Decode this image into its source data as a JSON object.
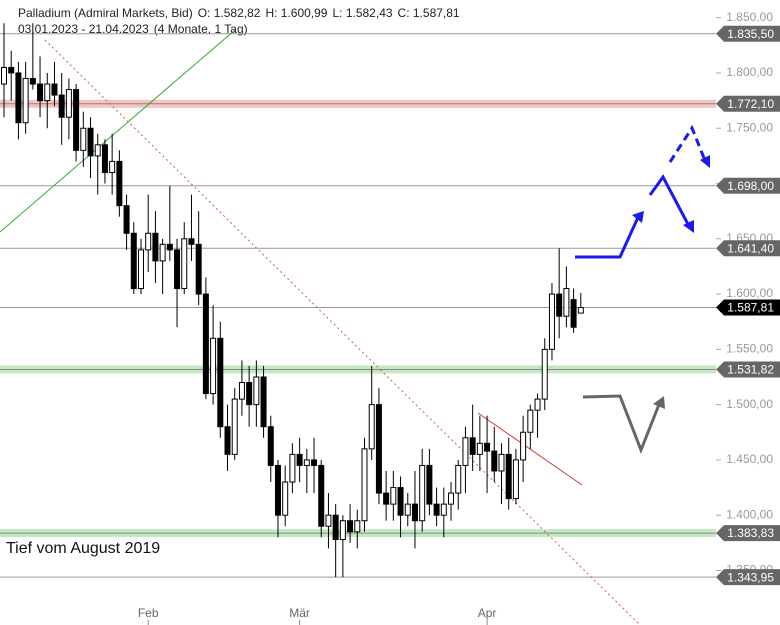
{
  "chart_data": {
    "type": "candlestick",
    "title": "Palladium (Admiral Markets, Bid)",
    "ohlc_labels": [
      "O: 1.582,82",
      "H: 1.600,99",
      "L: 1.582,43",
      "C: 1.587,81"
    ],
    "subtitle": "03.01.2023 - 21.04.2023",
    "period": "(4 Monate, 1 Tag)",
    "annotation": "Tief vom August 2019",
    "categories": [
      null,
      null,
      null,
      null,
      null,
      null,
      null,
      null,
      null,
      null,
      null,
      null,
      null,
      null,
      null,
      null,
      null,
      null,
      null,
      null,
      "Feb",
      null,
      null,
      null,
      null,
      null,
      null,
      null,
      null,
      null,
      null,
      null,
      null,
      null,
      null,
      null,
      null,
      null,
      null,
      null,
      null,
      "Mär",
      null,
      null,
      null,
      null,
      null,
      null,
      null,
      null,
      null,
      null,
      null,
      null,
      null,
      null,
      null,
      null,
      null,
      null,
      null,
      null,
      null,
      null,
      null,
      null,
      null,
      "Apr",
      null,
      null,
      null,
      null,
      null,
      null,
      null,
      null,
      null,
      null,
      null,
      null,
      null
    ],
    "ohlc": [
      [
        1790,
        1845,
        1760,
        1805
      ],
      [
        1805,
        1820,
        1775,
        1800
      ],
      [
        1800,
        1810,
        1740,
        1755
      ],
      [
        1755,
        1810,
        1745,
        1795
      ],
      [
        1795,
        1845,
        1785,
        1790
      ],
      [
        1790,
        1815,
        1760,
        1775
      ],
      [
        1775,
        1800,
        1750,
        1790
      ],
      [
        1790,
        1810,
        1770,
        1780
      ],
      [
        1780,
        1800,
        1735,
        1760
      ],
      [
        1760,
        1795,
        1740,
        1785
      ],
      [
        1785,
        1790,
        1720,
        1730
      ],
      [
        1730,
        1765,
        1715,
        1750
      ],
      [
        1750,
        1760,
        1705,
        1725
      ],
      [
        1725,
        1745,
        1690,
        1735
      ],
      [
        1735,
        1740,
        1700,
        1710
      ],
      [
        1710,
        1745,
        1690,
        1720
      ],
      [
        1720,
        1730,
        1670,
        1680
      ],
      [
        1680,
        1690,
        1640,
        1655
      ],
      [
        1655,
        1665,
        1600,
        1605
      ],
      [
        1605,
        1650,
        1600,
        1640
      ],
      [
        1640,
        1690,
        1620,
        1655
      ],
      [
        1655,
        1675,
        1610,
        1630
      ],
      [
        1630,
        1650,
        1600,
        1645
      ],
      [
        1645,
        1698,
        1630,
        1640
      ],
      [
        1640,
        1650,
        1570,
        1605
      ],
      [
        1605,
        1665,
        1600,
        1650
      ],
      [
        1650,
        1690,
        1630,
        1645
      ],
      [
        1645,
        1675,
        1590,
        1600
      ],
      [
        1600,
        1615,
        1505,
        1510
      ],
      [
        1510,
        1590,
        1500,
        1560
      ],
      [
        1560,
        1575,
        1470,
        1480
      ],
      [
        1480,
        1500,
        1440,
        1455
      ],
      [
        1455,
        1515,
        1450,
        1505
      ],
      [
        1505,
        1540,
        1490,
        1520
      ],
      [
        1520,
        1535,
        1480,
        1500
      ],
      [
        1500,
        1540,
        1480,
        1525
      ],
      [
        1525,
        1535,
        1470,
        1480
      ],
      [
        1480,
        1490,
        1430,
        1445
      ],
      [
        1445,
        1450,
        1380,
        1400
      ],
      [
        1400,
        1445,
        1390,
        1430
      ],
      [
        1430,
        1465,
        1420,
        1455
      ],
      [
        1455,
        1470,
        1430,
        1445
      ],
      [
        1445,
        1460,
        1420,
        1450
      ],
      [
        1450,
        1470,
        1420,
        1445
      ],
      [
        1445,
        1450,
        1380,
        1390
      ],
      [
        1390,
        1420,
        1370,
        1400
      ],
      [
        1400,
        1410,
        1344,
        1378
      ],
      [
        1378,
        1400,
        1343.95,
        1395
      ],
      [
        1395,
        1410,
        1375,
        1385
      ],
      [
        1385,
        1405,
        1370,
        1395
      ],
      [
        1395,
        1470,
        1385,
        1460
      ],
      [
        1460,
        1535,
        1450,
        1500
      ],
      [
        1500,
        1515,
        1410,
        1420
      ],
      [
        1420,
        1440,
        1395,
        1410
      ],
      [
        1410,
        1440,
        1395,
        1425
      ],
      [
        1425,
        1435,
        1380,
        1400
      ],
      [
        1400,
        1420,
        1390,
        1410
      ],
      [
        1410,
        1440,
        1370,
        1395
      ],
      [
        1395,
        1460,
        1385,
        1445
      ],
      [
        1445,
        1460,
        1400,
        1410
      ],
      [
        1410,
        1425,
        1390,
        1400
      ],
      [
        1400,
        1425,
        1380,
        1410
      ],
      [
        1410,
        1430,
        1395,
        1420
      ],
      [
        1420,
        1450,
        1405,
        1445
      ],
      [
        1445,
        1480,
        1420,
        1470
      ],
      [
        1470,
        1500,
        1440,
        1455
      ],
      [
        1455,
        1490,
        1440,
        1465
      ],
      [
        1465,
        1490,
        1420,
        1458
      ],
      [
        1458,
        1480,
        1430,
        1440
      ],
      [
        1440,
        1465,
        1410,
        1455
      ],
      [
        1455,
        1470,
        1405,
        1415
      ],
      [
        1415,
        1460,
        1410,
        1450
      ],
      [
        1450,
        1490,
        1430,
        1475
      ],
      [
        1475,
        1500,
        1460,
        1495
      ],
      [
        1495,
        1510,
        1470,
        1505
      ],
      [
        1505,
        1560,
        1495,
        1550
      ],
      [
        1550,
        1610,
        1540,
        1600
      ],
      [
        1600,
        1641.4,
        1560,
        1580
      ],
      [
        1580,
        1625,
        1570,
        1605
      ],
      [
        1595,
        1605,
        1565,
        1570
      ],
      [
        1582.82,
        1600.99,
        1582.43,
        1587.81
      ]
    ],
    "ylim": [
      1326,
      1866
    ],
    "yticks": [
      {
        "value": 1350,
        "label": "1.350,00"
      },
      {
        "value": 1400,
        "label": "1.400,00"
      },
      {
        "value": 1450,
        "label": "1.450,00"
      },
      {
        "value": 1500,
        "label": "1.500,00"
      },
      {
        "value": 1550,
        "label": "1.550,00"
      },
      {
        "value": 1600,
        "label": "1.600,00"
      },
      {
        "value": 1650,
        "label": "1.650,00"
      },
      {
        "value": 1700,
        "label": "1.700,00"
      },
      {
        "value": 1750,
        "label": "1.750,00"
      },
      {
        "value": 1800,
        "label": "1.800,00"
      },
      {
        "value": 1850,
        "label": "1.850,00"
      }
    ],
    "levels": [
      {
        "value": 1835.5,
        "label": "1.835,50",
        "color": "#666666"
      },
      {
        "value": 1772.1,
        "label": "1.772,10",
        "color": "#666666",
        "band": "#f4b4b4"
      },
      {
        "value": 1698,
        "label": "1.698,00",
        "color": "#666666"
      },
      {
        "value": 1641.4,
        "label": "1.641,40",
        "color": "#666666"
      },
      {
        "value": 1587.81,
        "label": "1.587,81",
        "color": "#000000"
      },
      {
        "value": 1531.82,
        "label": "1.531,82",
        "color": "#666666",
        "band": "#b4e4b4"
      },
      {
        "value": 1383.83,
        "label": "1.383,83",
        "color": "#666666",
        "band": "#b4e4b4"
      },
      {
        "value": 1343.95,
        "label": "1.343,95",
        "color": "#666666"
      }
    ]
  }
}
